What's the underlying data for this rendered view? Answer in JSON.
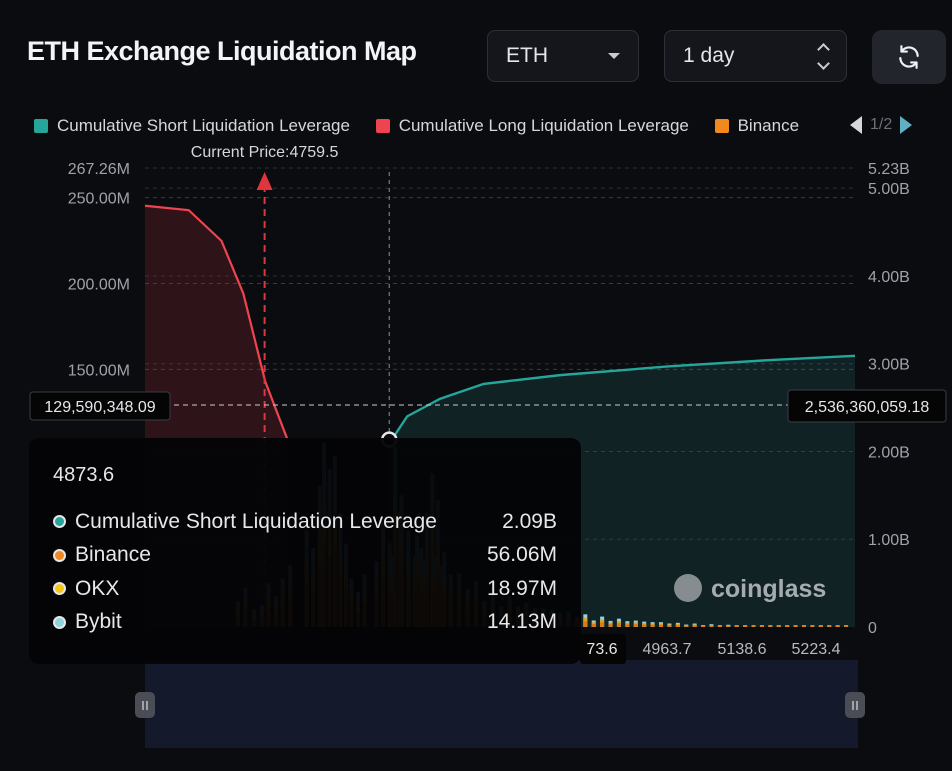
{
  "title": "ETH Exchange Liquidation Map",
  "controls": {
    "coin": "ETH",
    "range": "1 day",
    "refresh_icon": "refresh-icon"
  },
  "legend": [
    {
      "label": "Cumulative Short Liquidation Leverage",
      "color": "#26a69a"
    },
    {
      "label": "Cumulative Long Liquidation Leverage",
      "color": "#ef4450"
    },
    {
      "label": "Binance",
      "color": "#f0891e"
    }
  ],
  "legend_pager": "1/2",
  "current_price_label": "Current Price:4759.5",
  "crosshair": {
    "left_value": "129,590,348.09",
    "right_value": "2,536,360,059.18"
  },
  "x_ticks_visible": [
    "73.6",
    "4963.7",
    "5138.6",
    "5223.4"
  ],
  "watermark": "coinglass",
  "tooltip": {
    "title": "4873.6",
    "rows": [
      {
        "name": "Cumulative Short Liquidation Leverage",
        "value": "2.09B",
        "color": "#26a69a"
      },
      {
        "name": "Binance",
        "value": "56.06M",
        "color": "#f0891e"
      },
      {
        "name": "OKX",
        "value": "18.97M",
        "color": "#f5c518"
      },
      {
        "name": "Bybit",
        "value": "14.13M",
        "color": "#8fd3dd"
      }
    ]
  },
  "chart_data": {
    "type": "bar",
    "title": "ETH Exchange Liquidation Map",
    "x_range": [
      4650,
      5300
    ],
    "current_price": 4759.5,
    "hover_price": 4873.6,
    "y_left": {
      "ticks": [
        "150.00M",
        "200.00M",
        "250.00M",
        "267.26M"
      ],
      "tick_values": [
        150000000,
        200000000,
        250000000,
        267260000
      ],
      "range": [
        0,
        267260000
      ]
    },
    "y_right": {
      "ticks": [
        "0",
        "1.00B",
        "2.00B",
        "3.00B",
        "4.00B",
        "5.00B",
        "5.23B"
      ],
      "tick_values": [
        0,
        1000000000,
        2000000000,
        3000000000,
        4000000000,
        5000000000,
        5230000000
      ],
      "range": [
        0,
        5230000000
      ]
    },
    "long_curve": [
      [
        4650,
        4800000000.0
      ],
      [
        4690,
        4750000000.0
      ],
      [
        4720,
        4400000000.0
      ],
      [
        4740,
        3800000000.0
      ],
      [
        4760,
        2800000000.0
      ],
      [
        4780,
        2150000000.0
      ]
    ],
    "short_curve": [
      [
        4873.6,
        2090000000.0
      ],
      [
        4890,
        2400000000.0
      ],
      [
        4920,
        2600000000.0
      ],
      [
        4960,
        2770000000.0
      ],
      [
        5030,
        2870000000.0
      ],
      [
        5130,
        2970000000.0
      ],
      [
        5220,
        3040000000.0
      ],
      [
        5300,
        3090000000.0
      ]
    ],
    "bars": [
      [
        4735,
        0.3
      ],
      [
        4742,
        0.45
      ],
      [
        4750,
        0.2
      ],
      [
        4757,
        0.25
      ],
      [
        4763,
        0.5
      ],
      [
        4770,
        0.35
      ],
      [
        4776,
        0.55
      ],
      [
        4783,
        0.7
      ],
      [
        4798,
        1.1
      ],
      [
        4804,
        0.9
      ],
      [
        4810,
        1.6
      ],
      [
        4814,
        2.1
      ],
      [
        4819,
        1.8
      ],
      [
        4824,
        1.95
      ],
      [
        4829,
        1.3
      ],
      [
        4834,
        0.95
      ],
      [
        4839,
        0.55
      ],
      [
        4845,
        0.4
      ],
      [
        4851,
        0.6
      ],
      [
        4862,
        0.75
      ],
      [
        4868,
        1.2
      ],
      [
        4874,
        0.95
      ],
      [
        4879,
        2.05
      ],
      [
        4885,
        1.5
      ],
      [
        4891,
        1.1
      ],
      [
        4897,
        0.8
      ],
      [
        4903,
        0.9
      ],
      [
        4908,
        1.3
      ],
      [
        4913,
        1.75
      ],
      [
        4918,
        1.45
      ],
      [
        4924,
        0.85
      ]
    ]
  }
}
